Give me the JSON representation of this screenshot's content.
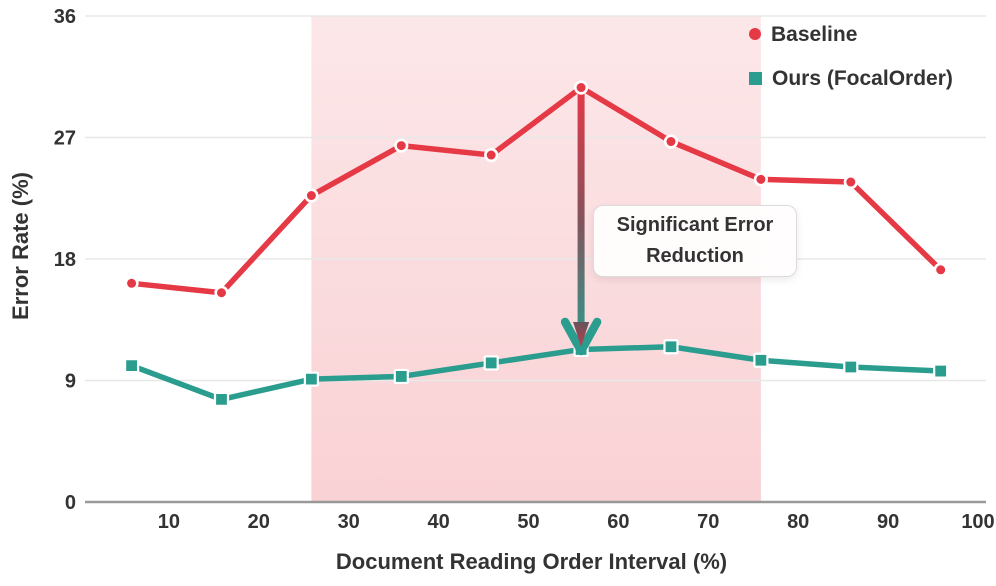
{
  "chart_data": {
    "type": "line",
    "title": "",
    "xlabel": "Document Reading Order Interval (%)",
    "ylabel": "Error Rate (%)",
    "xlim": [
      0,
      100
    ],
    "ylim": [
      0,
      36
    ],
    "xticks": [
      10,
      20,
      30,
      40,
      50,
      60,
      70,
      80,
      90,
      100
    ],
    "yticks": [
      0,
      9,
      18,
      27,
      36
    ],
    "grid": "horizontal",
    "legend_position": "top-right",
    "x": [
      5,
      15,
      25,
      35,
      45,
      55,
      65,
      75,
      85,
      95
    ],
    "series": [
      {
        "name": "Baseline",
        "marker": "circle",
        "color": "#e63946",
        "values": [
          16.2,
          15.5,
          22.7,
          26.4,
          25.7,
          30.7,
          26.7,
          23.9,
          23.7,
          17.2
        ]
      },
      {
        "name": "Ours (FocalOrder)",
        "marker": "square",
        "color": "#2a9d8f",
        "values": [
          10.1,
          7.6,
          9.1,
          9.3,
          10.3,
          11.3,
          11.5,
          10.5,
          10.0,
          9.7
        ]
      }
    ],
    "highlight_band": {
      "x_start": 25,
      "x_end": 75,
      "color": "#e63946",
      "opacity_top": 0.12,
      "opacity_bottom": 0.23
    },
    "annotation": {
      "text": "Significant Error Reduction",
      "arrow_x": 55,
      "arrow_from_y": 30.7,
      "arrow_to_y": 11.3
    }
  },
  "colors": {
    "baseline": "#e63946",
    "ours": "#2a9d8f",
    "text": "#333333",
    "gridline": "#e8e8e8",
    "axis_line": "#999999",
    "marker_ring": "#ffffff",
    "annotation_border": "#dbdbdb",
    "annotation_bg": "#fffdfd"
  }
}
